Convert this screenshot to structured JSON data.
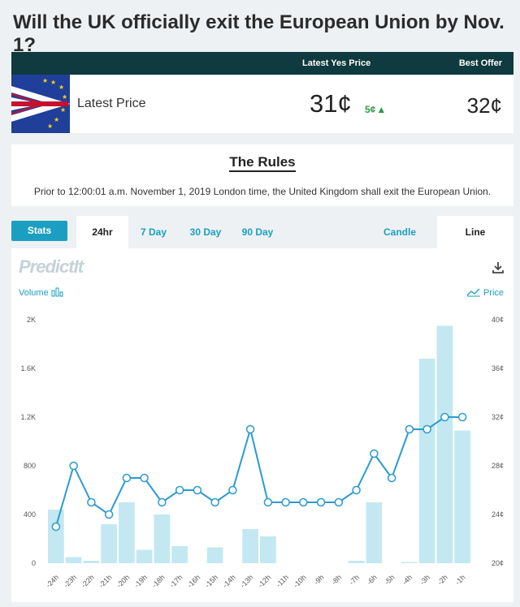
{
  "page": {
    "title": "Will the UK officially exit the European Union by Nov. 1?"
  },
  "price_header": {
    "latest_yes_price_label": "Latest Yes Price",
    "best_offer_label": "Best Offer"
  },
  "price_row": {
    "latest_price_label": "Latest Price",
    "yes_price": "31¢",
    "change": "5¢",
    "change_direction": "up",
    "best_offer": "32¢"
  },
  "rules": {
    "title": "The Rules",
    "text": "Prior to 12:00:01 a.m. November 1, 2019 London time, the United Kingdom shall exit the European Union."
  },
  "tabs": {
    "stats": "Stats",
    "h24": "24hr",
    "d7": "7 Day",
    "d30": "30 Day",
    "d90": "90 Day",
    "candle": "Candle",
    "line": "Line",
    "active": [
      "24hr",
      "Line"
    ]
  },
  "chart_header": {
    "logo": "PredictIt",
    "volume_label": "Volume",
    "price_label": "Price"
  },
  "colors": {
    "accent": "#1a9fc1",
    "header_bg": "#0f3a3f",
    "bar": "#c3e8f1",
    "line": "#2a9bd0",
    "up": "#2e9a45"
  },
  "chart_data": {
    "type": "bar",
    "categories": [
      "-24h",
      "-23h",
      "-22h",
      "-21h",
      "-20h",
      "-19h",
      "-18h",
      "-17h",
      "-16h",
      "-15h",
      "-14h",
      "-13h",
      "-12h",
      "-11h",
      "-10h",
      "-9h",
      "-8h",
      "-7h",
      "-6h",
      "-5h",
      "-4h",
      "-3h",
      "-2h",
      "-1h"
    ],
    "series": [
      {
        "name": "Volume",
        "type": "bar",
        "axis": "left",
        "values": [
          440,
          50,
          20,
          320,
          500,
          110,
          400,
          140,
          0,
          130,
          0,
          280,
          220,
          0,
          0,
          0,
          0,
          20,
          500,
          0,
          10,
          1680,
          1950,
          1090
        ]
      },
      {
        "name": "Price",
        "type": "line",
        "axis": "right",
        "values": [
          23,
          28,
          25,
          24,
          27,
          27,
          25,
          26,
          26,
          25,
          26,
          31,
          25,
          25,
          25,
          25,
          25,
          26,
          29,
          27,
          31,
          31,
          32,
          32
        ]
      }
    ],
    "y_left": {
      "label": "Volume",
      "ticks": [
        "0",
        "400",
        "800",
        "1.2K",
        "1.6K",
        "2K"
      ],
      "range": [
        0,
        2000
      ]
    },
    "y_right": {
      "label": "Price",
      "ticks": [
        "20¢",
        "24¢",
        "28¢",
        "32¢",
        "36¢",
        "40¢"
      ],
      "range": [
        20,
        40
      ]
    },
    "grid": false,
    "legend": "top"
  }
}
